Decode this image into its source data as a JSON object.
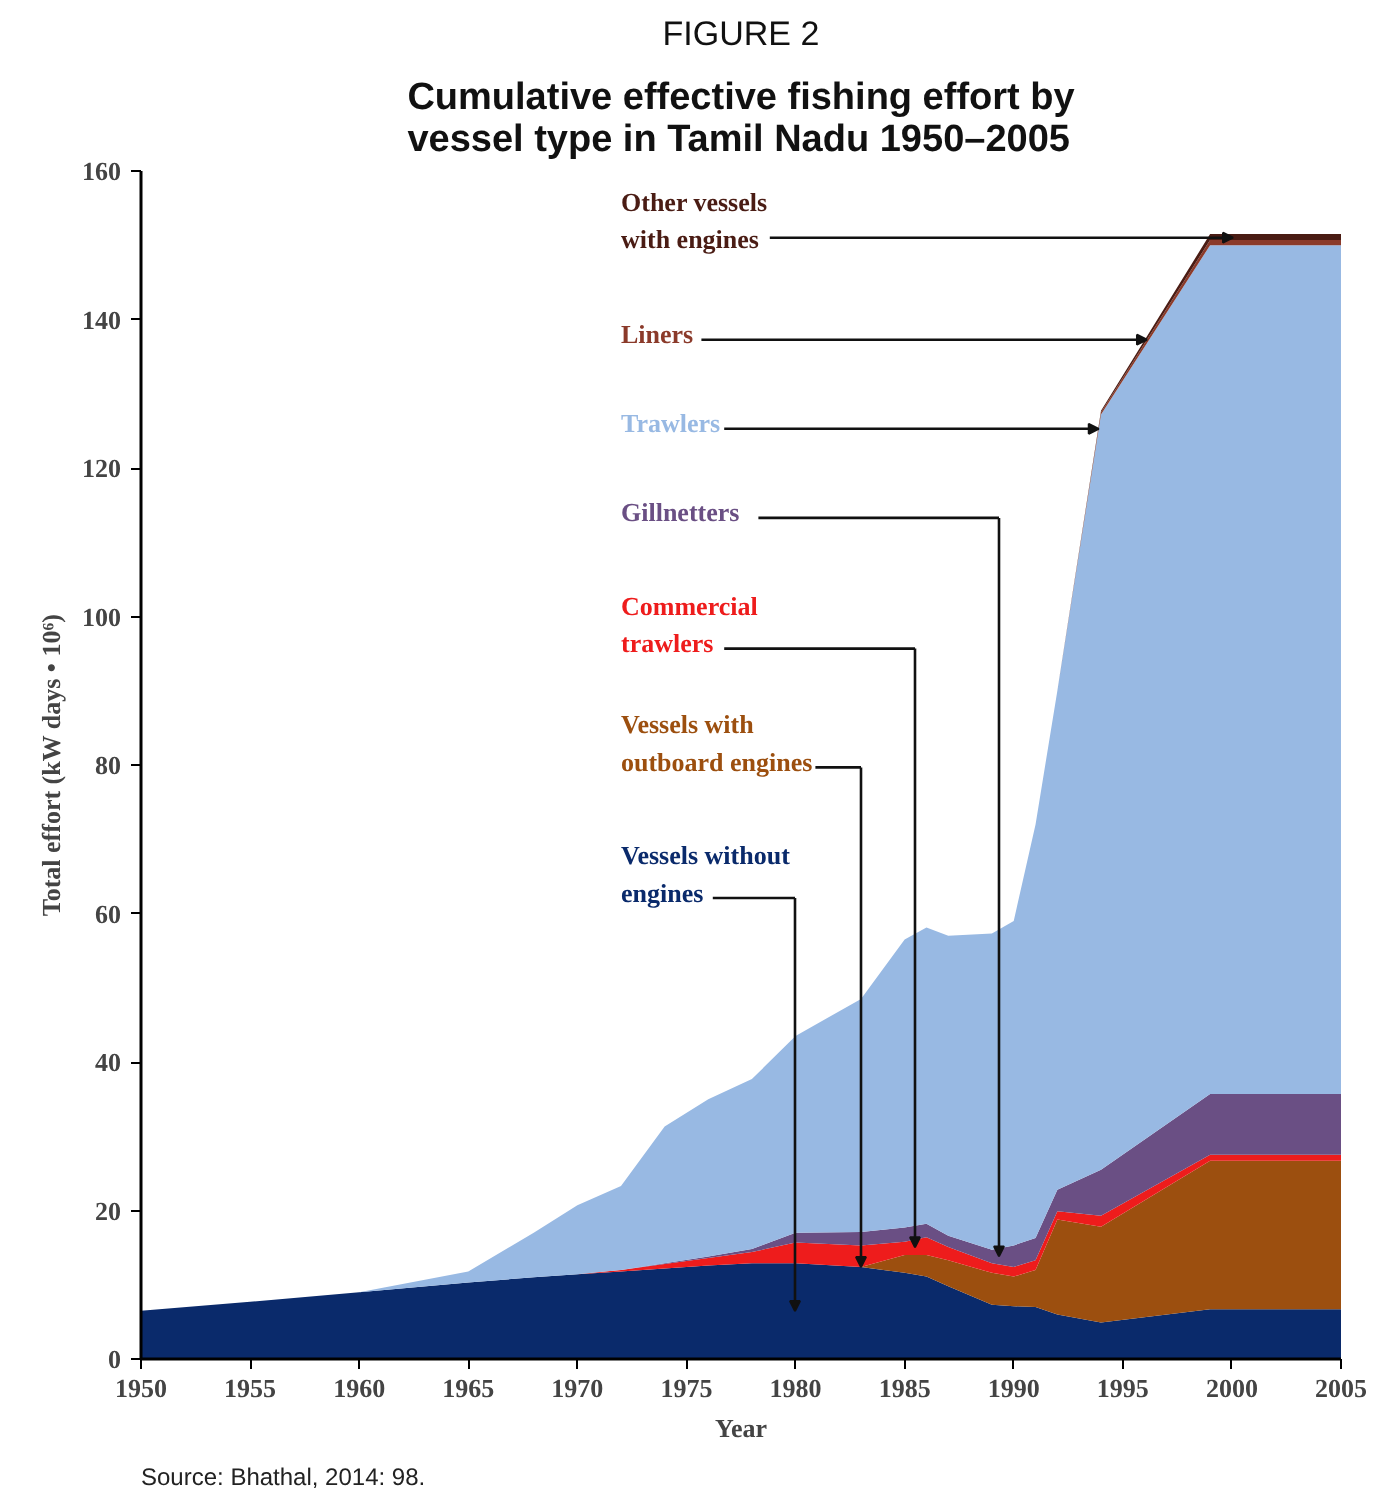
{
  "chart_data": {
    "type": "area",
    "stacked": true,
    "title": "Cumulative effective fishing effort by vessel type in Tamil Nadu 1950–2005",
    "subtitle": "FIGURE 2",
    "xlabel": "Year",
    "ylabel": "Total effort (kW days • 10⁶)",
    "x": [
      1950,
      1955,
      1960,
      1965,
      1968,
      1970,
      1972,
      1974,
      1976,
      1978,
      1980,
      1983,
      1985,
      1986,
      1987,
      1989,
      1990,
      1991,
      1992,
      1994,
      1999,
      2005
    ],
    "series": [
      {
        "name": "Vessels without engines",
        "color": "#0a2a6b",
        "values": [
          6.5,
          7.7,
          9,
          10.3,
          11,
          11.4,
          11.8,
          12.2,
          12.6,
          12.9,
          12.9,
          12.4,
          11.6,
          11.1,
          9.8,
          7.3,
          7.1,
          7,
          6,
          4.9,
          6.7,
          6.7
        ]
      },
      {
        "name": "Vessels with outboard engines",
        "color": "#9c4f0f",
        "values": [
          0,
          0,
          0,
          0,
          0,
          0,
          0,
          0,
          0,
          0,
          0,
          0,
          2.4,
          2.9,
          3.5,
          4.3,
          4,
          5,
          12.8,
          12.9,
          20,
          20
        ]
      },
      {
        "name": "Commercial trawlers",
        "color": "#ee1c1c",
        "values": [
          0,
          0,
          0,
          0,
          0,
          0,
          0.2,
          0.6,
          1,
          1.5,
          2.8,
          2.9,
          1.8,
          2.4,
          1.8,
          1.3,
          1.3,
          1.3,
          1.1,
          1.5,
          0.8,
          0.8
        ]
      },
      {
        "name": "Gillnetters",
        "color": "#6a4f84",
        "values": [
          0,
          0,
          0,
          0,
          0,
          0,
          0,
          0.1,
          0.2,
          0.4,
          1.3,
          1.8,
          1.9,
          1.8,
          1.5,
          1.8,
          2.9,
          3,
          2.9,
          6.2,
          8.2,
          8.2
        ]
      },
      {
        "name": "Trawlers",
        "color": "#98b9e3",
        "values": [
          0,
          0,
          0,
          1.5,
          6,
          9.3,
          11.3,
          18.4,
          21.2,
          22.9,
          26.5,
          31.4,
          38.8,
          39.9,
          40.4,
          42.6,
          43.7,
          55.7,
          67.2,
          101.7,
          114.3,
          114.3
        ]
      },
      {
        "name": "Liners",
        "color": "#8b3a2a",
        "values": [
          0,
          0,
          0,
          0,
          0,
          0,
          0,
          0,
          0,
          0,
          0,
          0,
          0,
          0,
          0,
          0,
          0,
          0,
          0,
          0.3,
          0.7,
          0.7
        ]
      },
      {
        "name": "Other vessels with engines",
        "color": "#4a1c14",
        "values": [
          0,
          0,
          0,
          0,
          0,
          0,
          0,
          0,
          0,
          0,
          0,
          0,
          0,
          0,
          0,
          0,
          0,
          0,
          0,
          0.2,
          0.8,
          0.8
        ]
      }
    ],
    "xlim": [
      1950,
      2005
    ],
    "xticks": [
      1950,
      1955,
      1960,
      1965,
      1970,
      1975,
      1980,
      1985,
      1990,
      1995,
      2000,
      2005
    ],
    "ylim": [
      0,
      160
    ],
    "yticks": [
      0,
      20,
      40,
      60,
      80,
      100,
      120,
      140,
      160
    ],
    "grid": false,
    "legend": false,
    "annotations": [
      "Source: Bhathal, 2014: 98."
    ]
  }
}
